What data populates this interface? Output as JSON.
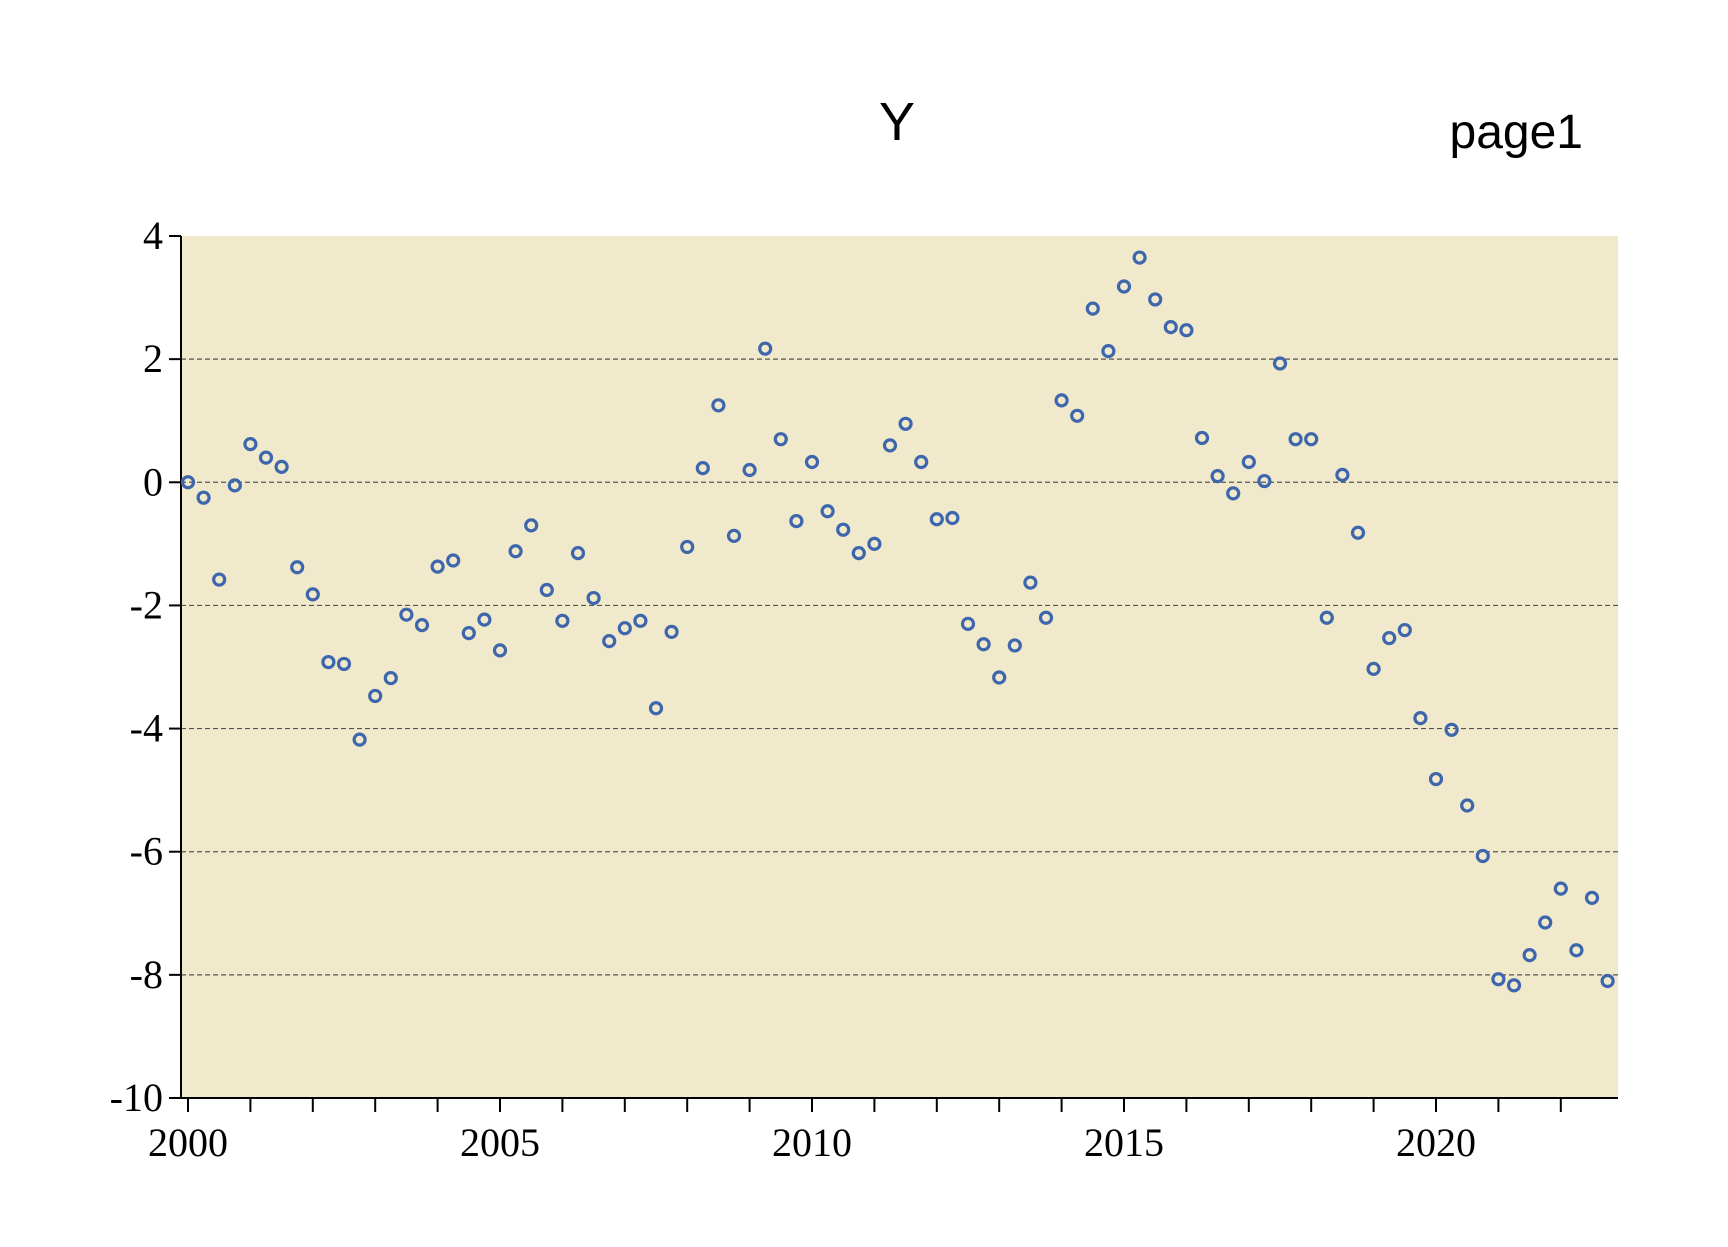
{
  "chart_data": {
    "type": "scatter",
    "title": "Y",
    "corner_label": "page1",
    "xlabel": "",
    "ylabel": "",
    "xlim": [
      2000,
      2023
    ],
    "ylim": [
      -10,
      4
    ],
    "x_ticks": [
      2000,
      2005,
      2010,
      2015,
      2020
    ],
    "y_ticks": [
      4,
      2,
      0,
      -2,
      -4,
      -6,
      -8,
      -10
    ],
    "grid": "horizontal dashed",
    "colors": {
      "plot_background": "#f0e9cc",
      "marker": "#3e66ad",
      "grid": "#555555"
    },
    "series": [
      {
        "x": [
          "2000Q1",
          "2000Q2",
          "2000Q3",
          "2000Q4",
          "2001Q1",
          "2001Q2",
          "2001Q3",
          "2001Q4",
          "2002Q1",
          "2002Q2",
          "2002Q3",
          "2002Q4",
          "2003Q1",
          "2003Q2",
          "2003Q3",
          "2003Q4",
          "2004Q1",
          "2004Q2",
          "2004Q3",
          "2004Q4",
          "2005Q1",
          "2005Q2",
          "2005Q3",
          "2005Q4",
          "2006Q1",
          "2006Q2",
          "2006Q3",
          "2006Q4",
          "2007Q1",
          "2007Q2",
          "2007Q3",
          "2007Q4",
          "2008Q1",
          "2008Q2",
          "2008Q3",
          "2008Q4",
          "2009Q1",
          "2009Q2",
          "2009Q3",
          "2009Q4",
          "2010Q1",
          "2010Q2",
          "2010Q3",
          "2010Q4",
          "2011Q1",
          "2011Q2",
          "2011Q3",
          "2011Q4",
          "2012Q1",
          "2012Q2",
          "2012Q3",
          "2012Q4",
          "2013Q1",
          "2013Q2",
          "2013Q3",
          "2013Q4",
          "2014Q1",
          "2014Q2",
          "2014Q3",
          "2014Q4",
          "2015Q1",
          "2015Q2",
          "2015Q3",
          "2015Q4",
          "2016Q1",
          "2016Q2",
          "2016Q3",
          "2016Q4",
          "2017Q1",
          "2017Q2",
          "2017Q3",
          "2017Q4",
          "2018Q1",
          "2018Q2",
          "2018Q3",
          "2018Q4",
          "2019Q1",
          "2019Q2",
          "2019Q3",
          "2019Q4",
          "2020Q1",
          "2020Q2",
          "2020Q3",
          "2020Q4",
          "2021Q1",
          "2021Q2",
          "2021Q3",
          "2021Q4",
          "2022Q1",
          "2022Q2",
          "2022Q3",
          "2022Q4"
        ],
        "values": [
          0.0,
          -0.25,
          -1.58,
          -0.05,
          0.62,
          0.4,
          0.25,
          -1.38,
          -1.82,
          -2.92,
          -2.95,
          -4.18,
          -3.47,
          -3.18,
          -2.15,
          -2.32,
          -1.37,
          -1.27,
          -2.45,
          -2.23,
          -2.73,
          -1.12,
          -0.7,
          -1.75,
          -2.25,
          -1.15,
          -1.88,
          -2.58,
          -2.37,
          -2.25,
          -3.67,
          -2.43,
          -1.05,
          0.23,
          1.25,
          -0.87,
          0.2,
          2.17,
          0.7,
          -0.63,
          0.33,
          -0.47,
          -0.77,
          -1.15,
          -1.0,
          0.6,
          0.95,
          0.33,
          -0.6,
          -0.58,
          -2.3,
          -2.63,
          -3.17,
          -2.65,
          -1.63,
          -2.2,
          1.33,
          1.08,
          2.82,
          2.13,
          3.18,
          3.65,
          2.97,
          2.52,
          2.47,
          0.72,
          0.1,
          -0.18,
          0.33,
          0.02,
          1.93,
          0.7,
          0.7,
          -2.2,
          0.12,
          -0.82,
          -3.03,
          -2.53,
          -2.4,
          -3.83,
          -4.82,
          -4.02,
          -5.25,
          -6.07,
          -8.07,
          -8.17,
          -7.68,
          -7.15,
          -6.6,
          -7.6,
          -6.75,
          -8.1
        ]
      }
    ]
  }
}
